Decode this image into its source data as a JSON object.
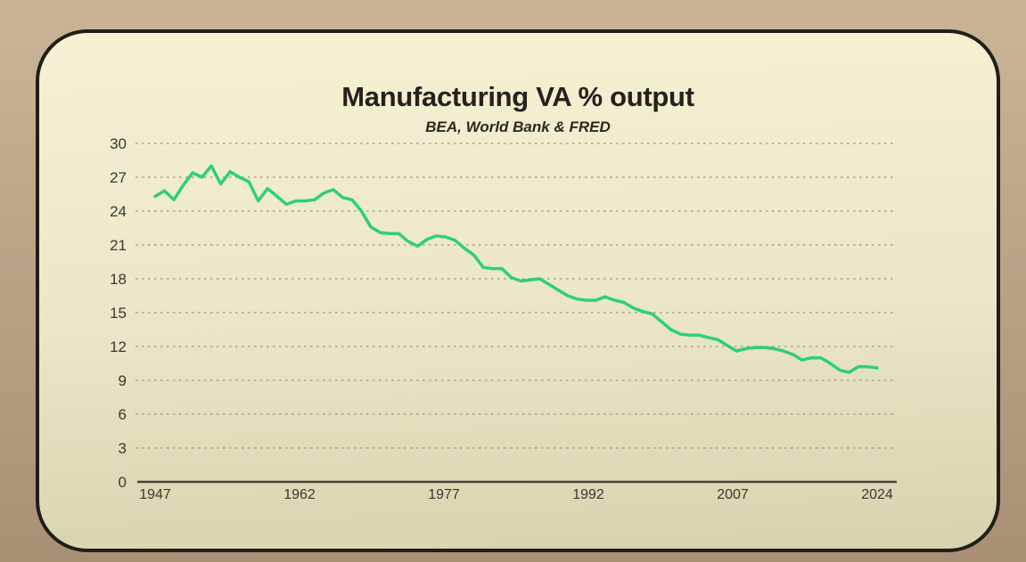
{
  "page": {
    "background_color": "#bca388",
    "card_background": "#efebcc",
    "card_border_color": "#211e17"
  },
  "chart": {
    "title": "Manufacturing VA % output",
    "subtitle": "BEA, World Bank & FRED"
  },
  "chart_data": {
    "type": "line",
    "title": "Manufacturing VA % output",
    "subtitle": "BEA, World Bank & FRED",
    "xlabel": "",
    "ylabel": "",
    "xlim": [
      1947,
      2024
    ],
    "ylim": [
      0,
      30
    ],
    "yticks": [
      0,
      3,
      6,
      9,
      12,
      15,
      18,
      21,
      24,
      27,
      30
    ],
    "xticks": [
      1947,
      1962,
      1977,
      1992,
      2007,
      2024
    ],
    "grid": "horizontal-dashed",
    "legend": "none",
    "line_color": "#2dd076",
    "gridline_color": "#a8a28d",
    "axis_color": "#45423a",
    "x": [
      1947,
      1948,
      1949,
      1950,
      1951,
      1952,
      1953,
      1954,
      1955,
      1956,
      1957,
      1958,
      1959,
      1960,
      1961,
      1962,
      1963,
      1964,
      1965,
      1966,
      1967,
      1968,
      1969,
      1970,
      1971,
      1972,
      1973,
      1974,
      1975,
      1976,
      1977,
      1978,
      1979,
      1980,
      1981,
      1982,
      1983,
      1984,
      1985,
      1986,
      1987,
      1988,
      1989,
      1990,
      1991,
      1992,
      1993,
      1994,
      1995,
      1996,
      1997,
      1998,
      1999,
      2000,
      2001,
      2002,
      2003,
      2004,
      2005,
      2006,
      2007,
      2008,
      2009,
      2010,
      2011,
      2012,
      2013,
      2014,
      2015,
      2016,
      2017,
      2018,
      2019,
      2020,
      2021,
      2022,
      2023,
      2024
    ],
    "series": [
      {
        "name": "Manufacturing VA % output",
        "values": [
          25.3,
          25.8,
          25.0,
          26.3,
          27.4,
          27.0,
          28.0,
          26.4,
          27.5,
          27.0,
          26.6,
          24.9,
          26.0,
          25.3,
          24.6,
          24.9,
          24.9,
          25.0,
          25.6,
          25.9,
          25.2,
          25.0,
          24.0,
          22.6,
          22.1,
          22.0,
          22.0,
          21.3,
          20.9,
          21.5,
          21.8,
          21.7,
          21.4,
          20.7,
          20.1,
          19.0,
          18.9,
          18.9,
          18.1,
          17.8,
          17.9,
          18.0,
          17.5,
          17.0,
          16.5,
          16.2,
          16.1,
          16.1,
          16.4,
          16.1,
          15.9,
          15.4,
          15.1,
          14.9,
          14.2,
          13.5,
          13.1,
          13.0,
          13.0,
          12.8,
          12.6,
          12.1,
          11.6,
          11.8,
          11.9,
          11.9,
          11.8,
          11.6,
          11.3,
          10.8,
          11.0,
          11.0,
          10.5,
          9.9,
          9.7,
          10.2,
          10.2,
          10.1
        ]
      }
    ]
  }
}
